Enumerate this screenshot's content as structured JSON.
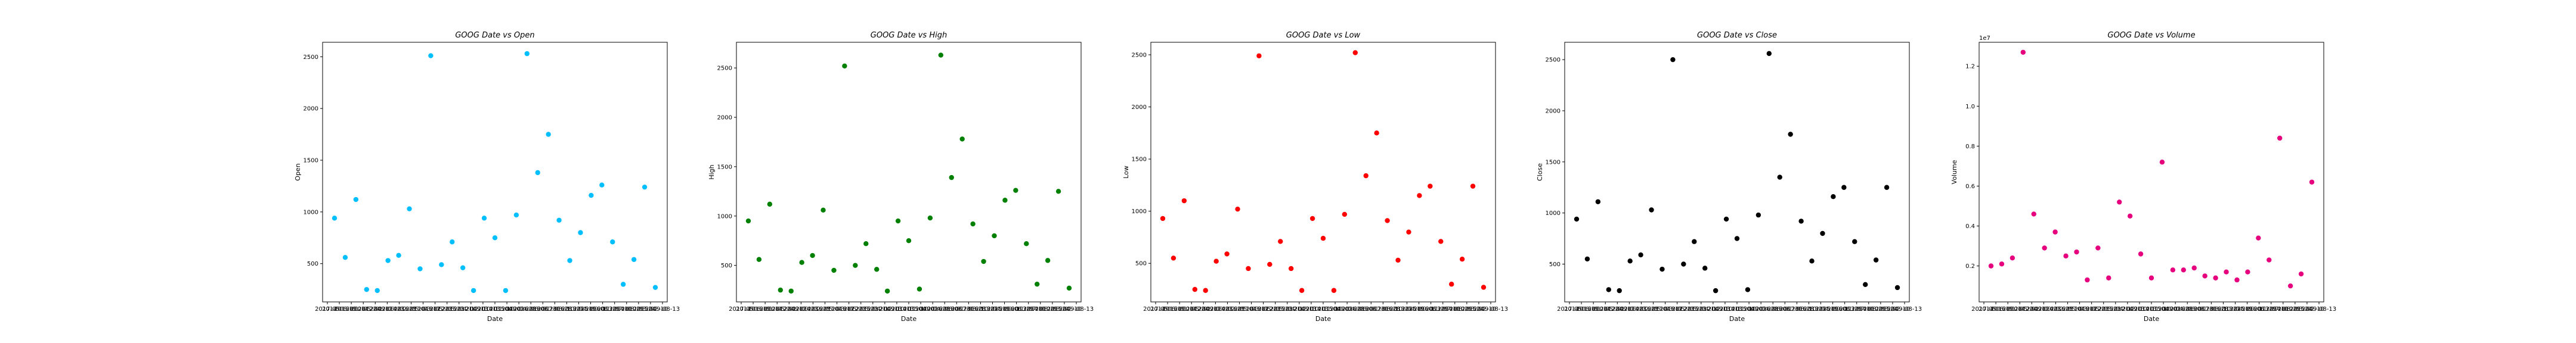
{
  "chart_data": [
    {
      "type": "scatter",
      "title": "GOOG Date vs Open",
      "xlabel": "Date",
      "ylabel": "Open",
      "color": "#00bfff",
      "x_tick_labels": [
        "2017-05",
        "2014-06-19",
        "2016-01-14",
        "2010-05-24",
        "2012-01-12",
        "2009-09-23",
        "2014-02-25",
        "2016-05-04",
        "2011-03-17",
        "2018-05-23",
        "2012-05-23",
        "2015-04-14",
        "2012-12-13",
        "2009-10-13",
        "2014-11-04",
        "2015-10-02",
        "2009-04-28",
        "2016-06-06",
        "2018-01-30",
        "2017-03-28",
        "2016-10-27",
        "2013-04-19",
        "2015-09-06",
        "2016-11-29",
        "2013-07-10",
        "2014-08-29",
        "2010-03-24",
        "2015-02-10",
        "2009-08-13"
      ],
      "ylim": [
        130,
        2640
      ],
      "y_ticks": [
        500,
        1000,
        1500,
        2000,
        2500
      ],
      "y_offset": "",
      "grid": false,
      "values": [
        940,
        560,
        1120,
        250,
        240,
        530,
        580,
        1030,
        450,
        2510,
        490,
        710,
        460,
        240,
        940,
        750,
        240,
        970,
        2530,
        1380,
        1750,
        920,
        530,
        800,
        1160,
        1260,
        710,
        300,
        540,
        1240,
        270
      ]
    },
    {
      "type": "scatter",
      "title": "GOOG Date vs High",
      "xlabel": "Date",
      "ylabel": "High",
      "color": "#008000",
      "x_tick_labels": [
        "2017-05",
        "2014-06-19",
        "2016-01-14",
        "2010-05-24",
        "2012-01-12",
        "2009-09-23",
        "2014-02-25",
        "2016-05-04",
        "2011-03-17",
        "2018-05-23",
        "2012-05-23",
        "2015-04-14",
        "2012-12-13",
        "2009-10-13",
        "2014-11-04",
        "2015-10-02",
        "2009-04-28",
        "2016-06-06",
        "2018-01-30",
        "2017-03-28",
        "2016-10-27",
        "2013-04-19",
        "2015-09-06",
        "2016-11-29",
        "2013-07-10",
        "2014-08-29",
        "2010-03-24",
        "2015-02-10",
        "2009-08-13"
      ],
      "ylim": [
        130,
        2760
      ],
      "y_ticks": [
        500,
        1000,
        1500,
        2000,
        2500
      ],
      "y_offset": "",
      "grid": false,
      "values": [
        950,
        560,
        1120,
        250,
        240,
        530,
        600,
        1060,
        450,
        2520,
        500,
        720,
        460,
        240,
        950,
        750,
        260,
        980,
        2630,
        1390,
        1780,
        920,
        540,
        800,
        1160,
        1260,
        720,
        310,
        550,
        1250,
        270
      ]
    },
    {
      "type": "scatter",
      "title": "GOOG Date vs Low",
      "xlabel": "Date",
      "ylabel": "Low",
      "color": "#ff0000",
      "x_tick_labels": [
        "2017-05",
        "2014-06-19",
        "2016-01-14",
        "2010-05-24",
        "2012-01-12",
        "2009-09-23",
        "2014-02-25",
        "2016-05-04",
        "2011-03-17",
        "2018-05-23",
        "2012-05-23",
        "2015-04-14",
        "2012-12-13",
        "2009-10-13",
        "2014-11-04",
        "2015-10-02",
        "2009-04-28",
        "2016-06-06",
        "2018-01-30",
        "2017-03-28",
        "2016-10-27",
        "2013-04-19",
        "2015-09-06",
        "2016-11-29",
        "2013-07-10",
        "2014-08-29",
        "2010-03-24",
        "2015-02-10",
        "2009-08-13"
      ],
      "ylim": [
        130,
        2620
      ],
      "y_ticks": [
        500,
        1000,
        1500,
        2000,
        2500
      ],
      "y_offset": "",
      "grid": false,
      "values": [
        930,
        550,
        1100,
        250,
        240,
        520,
        590,
        1020,
        450,
        2490,
        490,
        710,
        450,
        240,
        930,
        740,
        240,
        970,
        2520,
        1340,
        1750,
        910,
        530,
        800,
        1150,
        1240,
        710,
        300,
        540,
        1240,
        270
      ]
    },
    {
      "type": "scatter",
      "title": "GOOG Date vs Close",
      "xlabel": "Date",
      "ylabel": "Close",
      "color": "#000000",
      "x_tick_labels": [
        "2017-05",
        "2014-06-19",
        "2016-01-14",
        "2010-05-24",
        "2012-01-12",
        "2009-09-23",
        "2014-02-25",
        "2016-05-04",
        "2011-03-17",
        "2018-05-23",
        "2012-05-23",
        "2015-04-14",
        "2012-12-13",
        "2009-10-13",
        "2014-11-04",
        "2015-10-02",
        "2009-04-28",
        "2016-06-06",
        "2018-01-30",
        "2017-03-28",
        "2016-10-27",
        "2013-04-19",
        "2015-09-06",
        "2016-11-29",
        "2013-07-10",
        "2014-08-29",
        "2010-03-24",
        "2015-02-10",
        "2009-08-13"
      ],
      "ylim": [
        130,
        2670
      ],
      "y_ticks": [
        500,
        1000,
        1500,
        2000,
        2500
      ],
      "y_offset": "",
      "grid": false,
      "values": [
        940,
        550,
        1110,
        250,
        240,
        530,
        590,
        1030,
        450,
        2500,
        500,
        720,
        460,
        240,
        940,
        750,
        250,
        980,
        2560,
        1350,
        1770,
        920,
        530,
        800,
        1160,
        1250,
        720,
        300,
        540,
        1250,
        270
      ]
    },
    {
      "type": "scatter",
      "title": "GOOG Date vs Volume",
      "xlabel": "Date",
      "ylabel": "Volume",
      "color": "#e6007e",
      "x_tick_labels": [
        "2017-05",
        "2014-06-19",
        "2016-01-14",
        "2010-05-24",
        "2012-01-12",
        "2009-09-23",
        "2014-02-25",
        "2016-05-04",
        "2011-03-17",
        "2018-05-23",
        "2012-05-23",
        "2015-04-14",
        "2012-12-13",
        "2009-10-13",
        "2014-11-04",
        "2015-10-02",
        "2009-04-28",
        "2016-06-06",
        "2018-01-30",
        "2017-03-28",
        "2016-10-27",
        "2013-04-19",
        "2015-09-06",
        "2016-11-29",
        "2013-07-10",
        "2014-08-29",
        "2010-03-24",
        "2015-02-10",
        "2009-08-13"
      ],
      "ylim": [
        0.02,
        1.32
      ],
      "y_ticks": [
        0.2,
        0.4,
        0.6,
        0.8,
        1.0,
        1.2
      ],
      "y_tick_labels": [
        "0.2",
        "0.4",
        "0.6",
        "0.8",
        "1.0",
        "1.2"
      ],
      "y_offset": "1e7",
      "grid": false,
      "values": [
        0.2,
        0.21,
        0.24,
        1.27,
        0.46,
        0.29,
        0.37,
        0.25,
        0.27,
        0.13,
        0.29,
        0.14,
        0.52,
        0.45,
        0.26,
        0.14,
        0.72,
        0.18,
        0.18,
        0.19,
        0.15,
        0.14,
        0.17,
        0.13,
        0.17,
        0.34,
        0.23,
        0.84,
        0.1,
        0.16,
        0.62
      ]
    }
  ]
}
